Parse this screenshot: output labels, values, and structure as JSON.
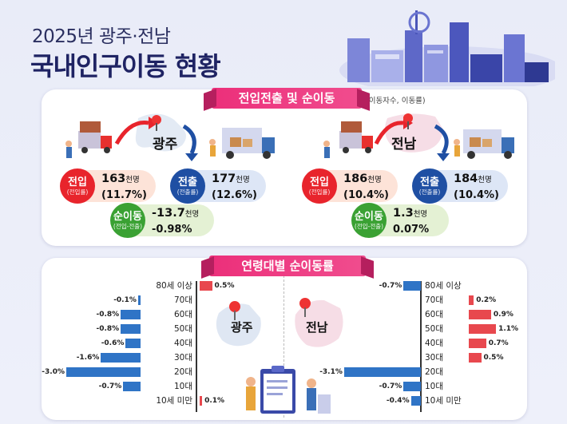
{
  "header": {
    "subtitle": "2025년 광주·전남",
    "title": "국내인구이동 현황"
  },
  "section1": {
    "label": "전입전출 및 순이동",
    "unit_note": "(이동자수, 이동률)"
  },
  "section2": {
    "label": "연령대별 순이동률"
  },
  "gwangju": {
    "name": "광주",
    "in": {
      "label": "전입",
      "sub": "(전입률)",
      "value": "163",
      "unit": "천명",
      "rate": "(11.7%)"
    },
    "out": {
      "label": "전출",
      "sub": "(전출률)",
      "value": "177",
      "unit": "천명",
      "rate": "(12.6%)"
    },
    "net": {
      "label": "순이동",
      "sub": "(전입-전출)",
      "value": "-13.7",
      "unit": "천명",
      "rate": "-0.98%"
    }
  },
  "jeonnam": {
    "name": "전남",
    "in": {
      "label": "전입",
      "sub": "(전입률)",
      "value": "186",
      "unit": "천명",
      "rate": "(10.4%)"
    },
    "out": {
      "label": "전출",
      "sub": "(전출률)",
      "value": "184",
      "unit": "천명",
      "rate": "(10.4%)"
    },
    "net": {
      "label": "순이동",
      "sub": "(전입-전출)",
      "value": "1.3",
      "unit": "천명",
      "rate": "0.07%"
    }
  },
  "colors": {
    "positive": "#e8484e",
    "negative": "#2f74c6",
    "accent": "#ec2f7a"
  },
  "chart_data": [
    {
      "type": "bar",
      "orientation": "horizontal",
      "region": "광주",
      "categories": [
        "80세 이상",
        "70대",
        "60대",
        "50대",
        "40대",
        "30대",
        "20대",
        "10대",
        "10세 미만"
      ],
      "values": [
        0.5,
        -0.1,
        -0.8,
        -0.8,
        -0.6,
        -1.6,
        -3.0,
        -0.7,
        0.1
      ],
      "value_labels": [
        "0.5%",
        "-0.1%",
        "-0.8%",
        "-0.8%",
        "-0.6%",
        "-1.6%",
        "-3.0%",
        "-0.7%",
        "0.1%"
      ]
    },
    {
      "type": "bar",
      "orientation": "horizontal",
      "region": "전남",
      "categories": [
        "80세 이상",
        "70대",
        "60대",
        "50대",
        "40대",
        "30대",
        "20대",
        "10대",
        "10세 미만"
      ],
      "values": [
        -0.7,
        0.2,
        0.9,
        1.1,
        0.7,
        0.5,
        -3.1,
        -0.7,
        -0.4
      ],
      "value_labels": [
        "-0.7%",
        "0.2%",
        "0.9%",
        "1.1%",
        "0.7%",
        "0.5%",
        "-3.1%",
        "-0.7%",
        "-0.4%"
      ]
    }
  ]
}
